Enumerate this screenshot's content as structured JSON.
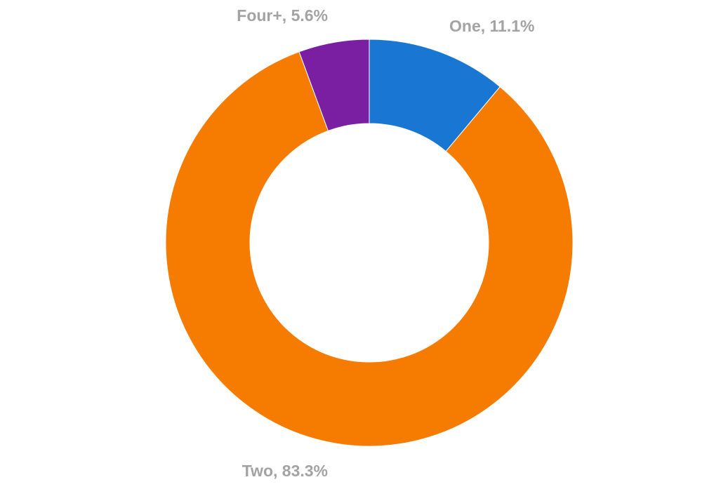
{
  "chart_data": {
    "type": "pie",
    "donut": true,
    "slices": [
      {
        "label": "One",
        "value": 11.1,
        "display": "One, 11.1%",
        "color": "#1976d2"
      },
      {
        "label": "Two",
        "value": 83.3,
        "display": "Two, 83.3%",
        "color": "#f57c00"
      },
      {
        "label": "Four+",
        "value": 5.6,
        "display": "Four+, 5.6%",
        "color": "#7b1fa2"
      }
    ],
    "start_angle_deg": 0,
    "direction": "clockwise",
    "label_color": "#a3a3a3"
  }
}
